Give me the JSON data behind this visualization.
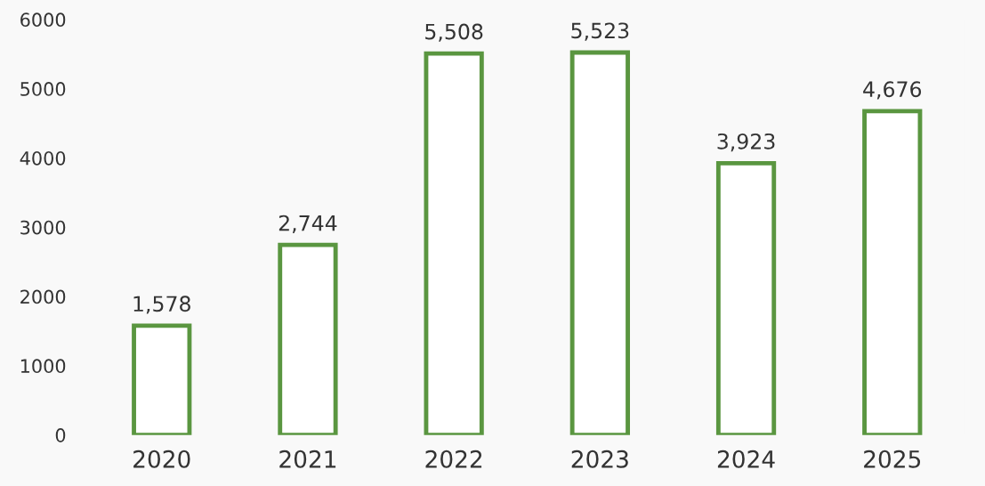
{
  "chart_data": {
    "type": "bar",
    "categories": [
      "2020",
      "2021",
      "2022",
      "2023",
      "2024",
      "2025"
    ],
    "values": [
      1578,
      2744,
      5508,
      5523,
      3923,
      4676
    ],
    "value_labels": [
      "1,578",
      "2,744",
      "5,508",
      "5,523",
      "3,923",
      "4,676"
    ],
    "color": "#5a9640",
    "ylim": [
      0,
      6000
    ],
    "yticks": [
      0,
      1000,
      2000,
      3000,
      4000,
      5000,
      6000
    ],
    "grid": false,
    "legend": false
  }
}
